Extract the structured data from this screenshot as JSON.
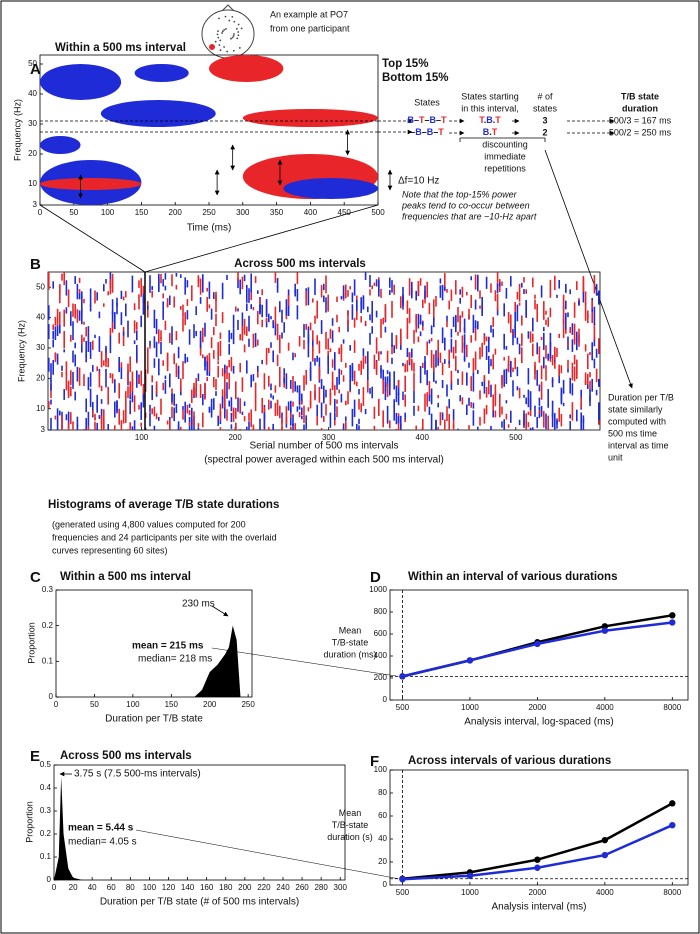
{
  "header": {
    "caption": [
      "An example at PO7",
      "from one participant"
    ]
  },
  "panel_a": {
    "label": "A",
    "title": "Within a 500 ms interval",
    "legend": [
      "Top 15%",
      "Bottom 15%"
    ],
    "ylabel": "Frequency (Hz)",
    "xlabel": "Time (ms)",
    "xlim": [
      0,
      500
    ],
    "ylim": [
      3,
      53
    ],
    "xticks": [
      0,
      50,
      100,
      150,
      200,
      250,
      300,
      350,
      400,
      450,
      500
    ],
    "yticks": [
      3,
      10,
      20,
      30,
      40,
      50
    ],
    "table": {
      "headers": [
        [
          "States"
        ],
        [
          "States starting",
          "in this interval,"
        ],
        [
          "# of",
          "states"
        ],
        [
          "T/B state",
          "duration"
        ]
      ],
      "rows": [
        [
          "B–T–B–T",
          "T.B.T",
          "3",
          "500/3 = 167 ms"
        ],
        [
          "–B–B–T",
          "B.T",
          "2",
          "500/2 = 250 ms"
        ]
      ],
      "note": [
        "discounting",
        "immediate",
        "repetitions"
      ]
    },
    "delta": "Δf=10 Hz",
    "note": [
      "Note that the top-15% power",
      "peaks tend to co-occur between",
      "frequencies that are ~10-Hz apart"
    ]
  },
  "panel_b": {
    "label": "B",
    "title": "Across 500 ms intervals",
    "ylabel": "Frequency (Hz)",
    "xlabel": [
      "Serial number of 500 ms intervals",
      "(spectral power averaged within each 500 ms interval)"
    ],
    "xlim": [
      0,
      590
    ],
    "ylim": [
      3,
      55
    ],
    "xticks": [
      100,
      200,
      300,
      400,
      500
    ],
    "yticks": [
      3,
      10,
      20,
      30,
      40,
      50
    ],
    "side_note": [
      "Duration per T/B",
      "state similarly",
      "computed with",
      "500 ms time",
      "interval as time",
      "unit"
    ]
  },
  "histograms": {
    "heading": "Histograms of average T/B state durations",
    "note": [
      "(generated using 4,800 values computed for 200",
      "frequencies and 24 participants per site with the overlaid",
      "curves representing 60 sites)"
    ]
  },
  "panel_c": {
    "label": "C",
    "title": "Within a 500 ms interval",
    "xlabel": "Duration per T/B state",
    "ylabel": "Proportion",
    "xlim": [
      0,
      255
    ],
    "ylim": [
      0,
      0.3
    ],
    "xticks": [
      0,
      50,
      100,
      150,
      200,
      250
    ],
    "yticks": [
      0,
      0.1,
      0.2,
      0.3
    ],
    "x": [
      180,
      190,
      200,
      210,
      220,
      225,
      230,
      235,
      240
    ],
    "values": [
      0,
      0.02,
      0.07,
      0.09,
      0.12,
      0.14,
      0.2,
      0.16,
      0
    ],
    "annotations": [
      "230 ms",
      "mean = 215 ms",
      "median= 218 ms"
    ]
  },
  "panel_d": {
    "label": "D",
    "title": "Within an interval of various durations",
    "ylabel": [
      "Mean",
      "T/B-state",
      "duration (ms)"
    ],
    "xlabel": "Analysis interval, log-spaced (ms)",
    "xlog": true,
    "xlim": [
      440,
      9400
    ],
    "ylim": [
      0,
      1000
    ],
    "xticks": [
      500,
      1000,
      2000,
      4000,
      8000
    ],
    "yticks": [
      0,
      200,
      400,
      600,
      800,
      1000
    ],
    "x": [
      500,
      1000,
      2000,
      4000,
      8000
    ],
    "series": [
      {
        "color": "#000000",
        "values": [
          215,
          360,
          525,
          670,
          770
        ]
      },
      {
        "color": "#1f2bd6",
        "values": [
          215,
          360,
          510,
          630,
          705
        ]
      }
    ]
  },
  "panel_e": {
    "label": "E",
    "title": "Across 500 ms intervals",
    "xlabel": "Duration per T/B state (# of 500 ms intervals)",
    "ylabel": "Proportion",
    "xlim": [
      0,
      305
    ],
    "ylim": [
      0,
      0.5
    ],
    "xticks": [
      0,
      20,
      40,
      60,
      80,
      100,
      120,
      140,
      160,
      180,
      200,
      220,
      240,
      260,
      280,
      300
    ],
    "yticks": [
      0,
      0.1,
      0.2,
      0.3,
      0.4,
      0.5
    ],
    "x": [
      0,
      5,
      7.5,
      10,
      15,
      20,
      30
    ],
    "values": [
      0,
      0.1,
      0.45,
      0.2,
      0.05,
      0.01,
      0
    ],
    "annotations": [
      "3.75 s (7.5 500-ms intervals)",
      "mean = 5.44 s",
      "median= 4.05 s"
    ]
  },
  "panel_f": {
    "label": "F",
    "title": "Across intervals of various durations",
    "ylabel": [
      "Mean",
      "T/B-state",
      "duration (s)"
    ],
    "xlabel": "Analysis interval (ms)",
    "xlog": true,
    "xlim": [
      440,
      9400
    ],
    "ylim": [
      0,
      100
    ],
    "xticks": [
      500,
      1000,
      2000,
      4000,
      8000
    ],
    "yticks": [
      0,
      20,
      40,
      60,
      80,
      100
    ],
    "x": [
      500,
      1000,
      2000,
      4000,
      8000
    ],
    "series": [
      {
        "color": "#000000",
        "values": [
          5.44,
          11,
          22,
          39,
          71
        ]
      },
      {
        "color": "#1f2bd6",
        "values": [
          5,
          8,
          15,
          26,
          52
        ]
      }
    ]
  }
}
